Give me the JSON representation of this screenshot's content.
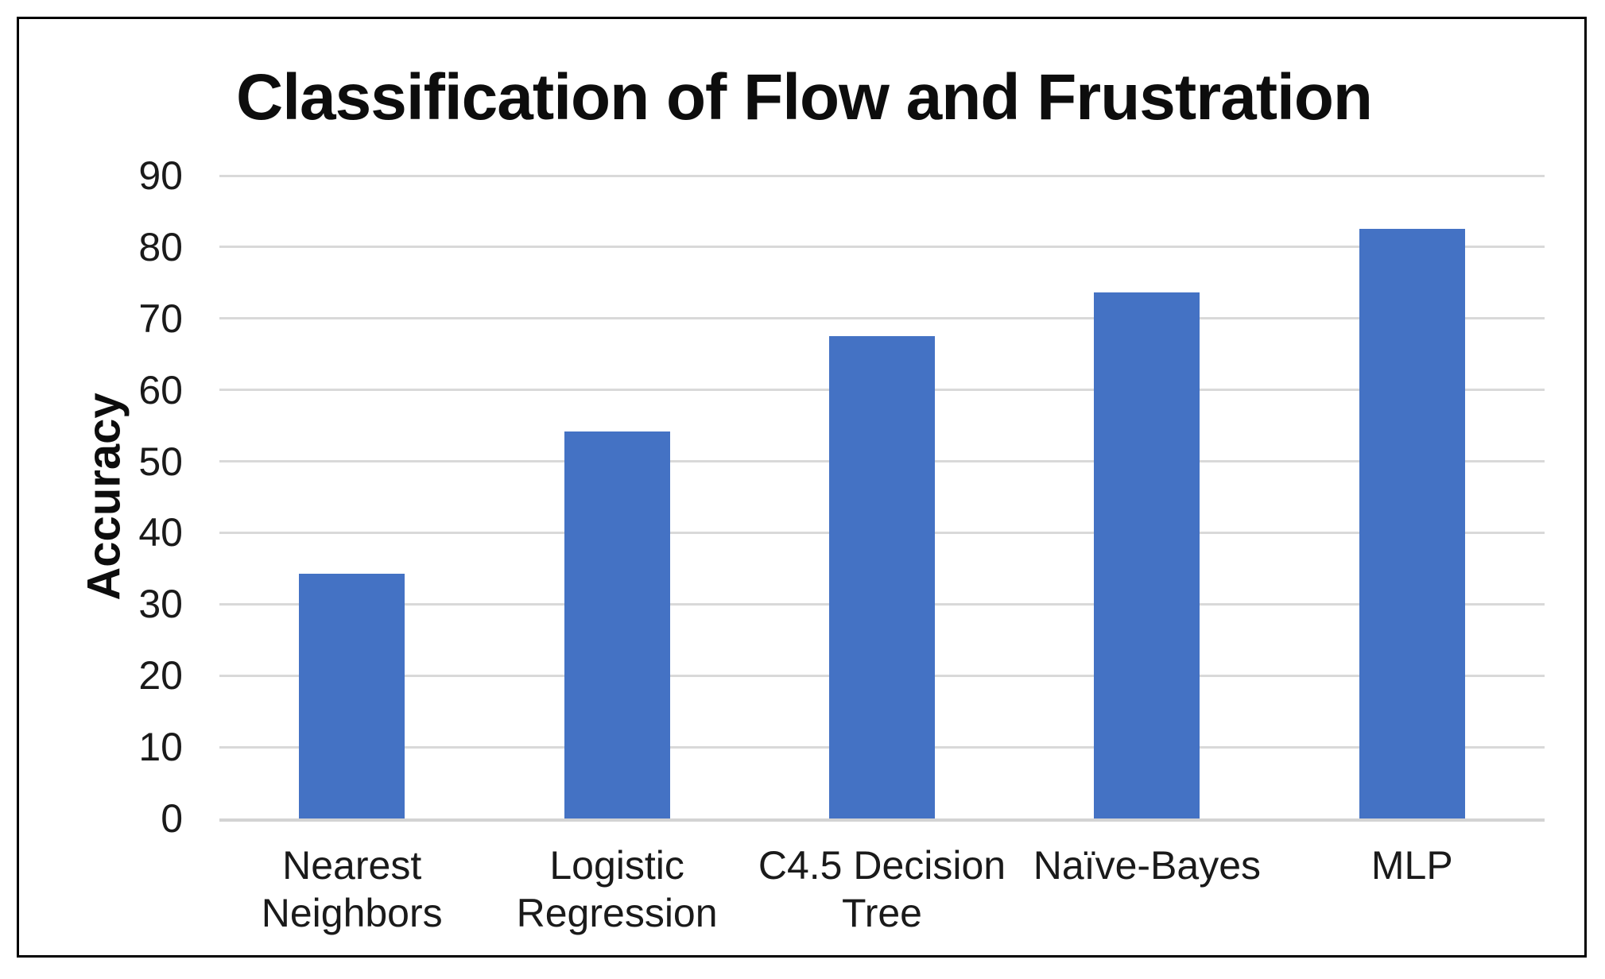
{
  "chart_data": {
    "type": "bar",
    "title": "Classification of Flow and Frustration",
    "xlabel": "",
    "ylabel": "Accuracy",
    "categories": [
      "Nearest Neighbors",
      "Logistic Regression",
      "C4.5 Decision Tree",
      "Naïve-Bayes",
      "MLP"
    ],
    "values": [
      34.3,
      54.2,
      67.5,
      73.7,
      82.6
    ],
    "ylim": [
      0,
      90
    ],
    "ytick_step": 10,
    "ytick_labels": [
      "0",
      "10",
      "20",
      "30",
      "40",
      "50",
      "60",
      "70",
      "80",
      "90"
    ],
    "grid": true,
    "legend": "none",
    "bar_color": "#4472C4",
    "gridline_color": "#D9D9D9",
    "axis_text_color": "#1A1A1A",
    "title_color": "#0D0D0D",
    "frame_border_color": "#000000"
  }
}
